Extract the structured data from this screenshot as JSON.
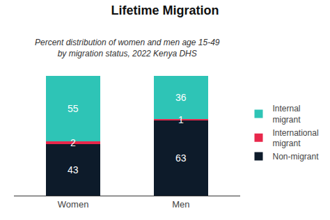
{
  "chart_data": {
    "type": "bar",
    "title": "Lifetime Migration",
    "subtitle": "Percent distribution of women and men age 15-49\nby migration status, 2022 Kenya DHS",
    "categories": [
      "Women",
      "Men"
    ],
    "series": [
      {
        "name": "Non-migrant",
        "color": "#0d1b2a",
        "values": [
          43,
          63
        ]
      },
      {
        "name": "International\nmigrant",
        "color": "#e8274b",
        "values": [
          2,
          1
        ]
      },
      {
        "name": "Internal\nmigrant",
        "color": "#2ec4b6",
        "values": [
          55,
          36
        ]
      }
    ],
    "stacked": true,
    "data_labels": true,
    "ylim": [
      0,
      105
    ],
    "grid": false,
    "legend": "right",
    "tick_labels": "x"
  }
}
